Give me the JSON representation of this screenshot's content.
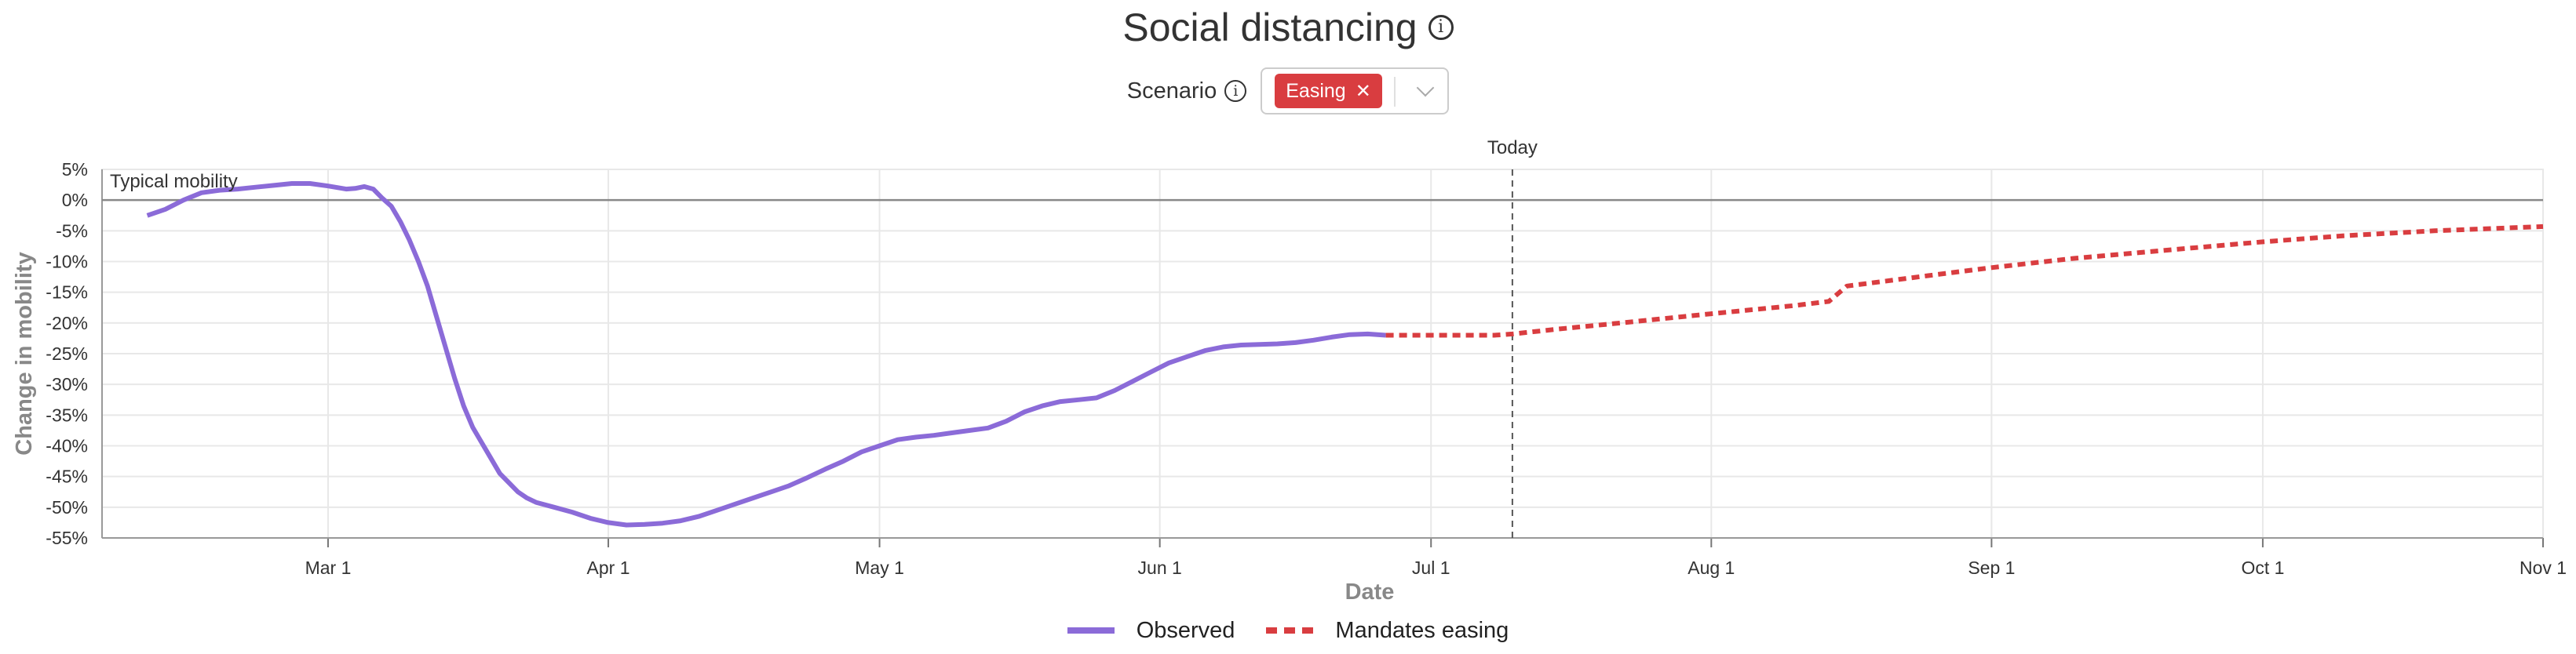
{
  "header": {
    "title": "Social distancing",
    "info_icon": "info-icon"
  },
  "scenario": {
    "label": "Scenario",
    "selected": "Easing",
    "remove_icon": "close-icon",
    "dropdown_icon": "chevron-down-icon"
  },
  "colors": {
    "observed": "#8b6bd8",
    "easing": "#d93d40",
    "today": "#555555",
    "zero_line": "#888888",
    "grid": "#e8e8e8"
  },
  "chart_data": {
    "type": "line",
    "title": "Social distancing",
    "xlabel": "Date",
    "ylabel": "Change in mobility",
    "x_range": [
      "2020-02-05",
      "2020-11-01"
    ],
    "ylim": [
      -55,
      5
    ],
    "y_ticks": [
      5,
      0,
      -5,
      -10,
      -15,
      -20,
      -25,
      -30,
      -35,
      -40,
      -45,
      -50,
      -55
    ],
    "y_tick_labels": [
      "5%",
      "0%",
      "-5%",
      "-10%",
      "-15%",
      "-20%",
      "-25%",
      "-30%",
      "-35%",
      "-40%",
      "-45%",
      "-50%",
      "-55%"
    ],
    "x_ticks": [
      "2020-03-01",
      "2020-04-01",
      "2020-05-01",
      "2020-06-01",
      "2020-07-01",
      "2020-08-01",
      "2020-09-01",
      "2020-10-01",
      "2020-11-01"
    ],
    "x_tick_labels": [
      "Mar 1",
      "Apr 1",
      "May 1",
      "Jun 1",
      "Jul 1",
      "Aug 1",
      "Sep 1",
      "Oct 1",
      "Nov 1"
    ],
    "grid": true,
    "legend_position": "bottom-center",
    "reference_line": {
      "y": 0,
      "label": "Typical mobility"
    },
    "today_marker": {
      "x": "2020-07-10",
      "label": "Today"
    },
    "series": [
      {
        "name": "Observed",
        "style": "solid",
        "x": [
          "2020-02-10",
          "2020-02-12",
          "2020-02-14",
          "2020-02-16",
          "2020-02-18",
          "2020-02-20",
          "2020-02-22",
          "2020-02-24",
          "2020-02-26",
          "2020-02-28",
          "2020-03-01",
          "2020-03-03",
          "2020-03-04",
          "2020-03-05",
          "2020-03-06",
          "2020-03-07",
          "2020-03-08",
          "2020-03-09",
          "2020-03-10",
          "2020-03-11",
          "2020-03-12",
          "2020-03-13",
          "2020-03-14",
          "2020-03-15",
          "2020-03-16",
          "2020-03-17",
          "2020-03-18",
          "2020-03-19",
          "2020-03-20",
          "2020-03-21",
          "2020-03-22",
          "2020-03-23",
          "2020-03-24",
          "2020-03-26",
          "2020-03-28",
          "2020-03-30",
          "2020-04-01",
          "2020-04-03",
          "2020-04-05",
          "2020-04-07",
          "2020-04-09",
          "2020-04-11",
          "2020-04-13",
          "2020-04-15",
          "2020-04-17",
          "2020-04-19",
          "2020-04-21",
          "2020-04-23",
          "2020-04-25",
          "2020-04-27",
          "2020-04-29",
          "2020-05-01",
          "2020-05-03",
          "2020-05-05",
          "2020-05-07",
          "2020-05-09",
          "2020-05-11",
          "2020-05-13",
          "2020-05-15",
          "2020-05-17",
          "2020-05-19",
          "2020-05-21",
          "2020-05-23",
          "2020-05-25",
          "2020-05-27",
          "2020-05-29",
          "2020-05-31",
          "2020-06-02",
          "2020-06-04",
          "2020-06-06",
          "2020-06-08",
          "2020-06-10",
          "2020-06-12",
          "2020-06-14",
          "2020-06-16",
          "2020-06-18",
          "2020-06-20",
          "2020-06-22",
          "2020-06-24",
          "2020-06-26"
        ],
        "y": [
          -2.5,
          -1.5,
          0,
          1.2,
          1.6,
          1.8,
          2.1,
          2.4,
          2.7,
          2.7,
          2.3,
          1.8,
          1.9,
          2.2,
          1.8,
          0.3,
          -1,
          -3.5,
          -6.5,
          -10,
          -14,
          -19,
          -24,
          -29,
          -33.5,
          -37,
          -39.5,
          -42,
          -44.5,
          -46,
          -47.5,
          -48.5,
          -49.2,
          -50,
          -50.8,
          -51.8,
          -52.5,
          -52.9,
          -52.8,
          -52.6,
          -52.2,
          -51.5,
          -50.5,
          -49.5,
          -48.5,
          -47.5,
          -46.5,
          -45.2,
          -43.8,
          -42.5,
          -41,
          -40,
          -39,
          -38.6,
          -38.3,
          -37.9,
          -37.5,
          -37.1,
          -36,
          -34.5,
          -33.5,
          -32.8,
          -32.5,
          -32.2,
          -31,
          -29.5,
          -28,
          -26.5,
          -25.5,
          -24.5,
          -23.9,
          -23.6,
          -23.5,
          -23.4,
          -23.2,
          -22.8,
          -22.3,
          -21.9,
          -21.8,
          -22
        ]
      },
      {
        "name": "Mandates easing",
        "style": "dashed",
        "x": [
          "2020-06-26",
          "2020-07-03",
          "2020-07-08",
          "2020-07-10",
          "2020-07-15",
          "2020-07-22",
          "2020-08-01",
          "2020-08-10",
          "2020-08-14",
          "2020-08-16",
          "2020-08-25",
          "2020-09-01",
          "2020-09-10",
          "2020-09-20",
          "2020-10-01",
          "2020-10-10",
          "2020-10-20",
          "2020-11-01"
        ],
        "y": [
          -22,
          -22,
          -22,
          -21.8,
          -21,
          -20,
          -18.5,
          -17.2,
          -16.5,
          -14,
          -12.3,
          -11,
          -9.5,
          -8.2,
          -6.8,
          -5.8,
          -5,
          -4.3
        ]
      }
    ]
  }
}
